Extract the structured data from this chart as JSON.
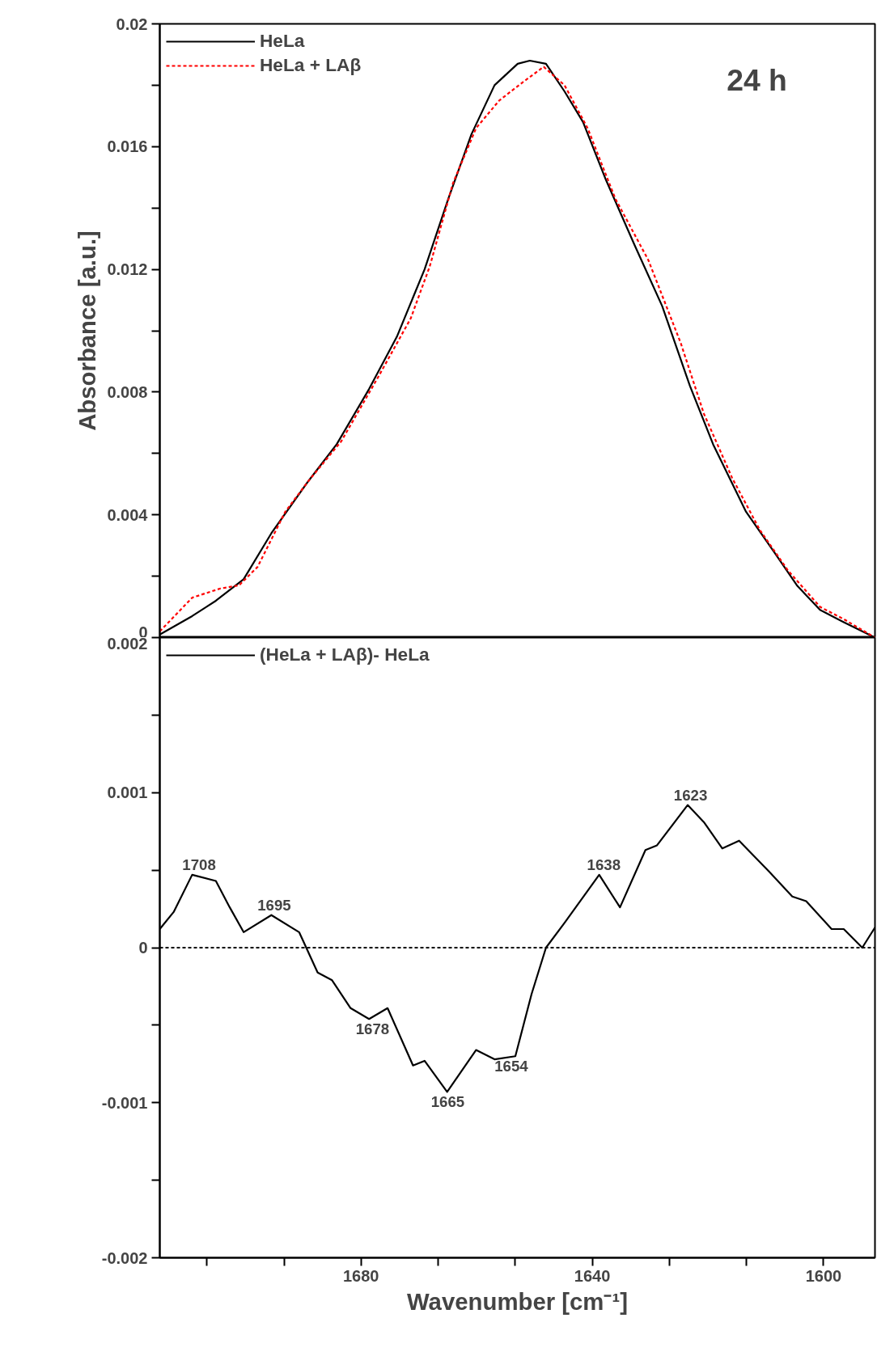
{
  "chart_data": [
    {
      "type": "line",
      "ylabel": "Absorbance [a.u.]",
      "xlim": [
        1714.8,
        1591.1
      ],
      "ylim": [
        0,
        0.02
      ],
      "yticks": [
        0,
        {
          "value": 0.002,
          "label": null
        },
        0.004,
        {
          "value": 0.006,
          "label": null
        },
        0.008,
        {
          "value": 0.01,
          "label": null
        },
        0.012,
        {
          "value": 0.014,
          "label": null
        },
        0.016,
        {
          "value": 0.018,
          "label": null
        },
        0.02
      ],
      "tick_labels": "y",
      "legend": "top left",
      "grid": false,
      "annotations": [
        "24 h"
      ],
      "series": [
        {
          "name": "HeLa",
          "color": "#000000",
          "line_style": "solid",
          "x": [
            1714.8,
            1709.2,
            1705.1,
            1700.3,
            1695.5,
            1689.1,
            1684.2,
            1678.6,
            1673.8,
            1669.0,
            1664.9,
            1660.9,
            1656.9,
            1652.9,
            1650.8,
            1648.0,
            1644.8,
            1641.6,
            1637.6,
            1632.7,
            1627.9,
            1623.1,
            1619.1,
            1613.4,
            1608.6,
            1604.6,
            1600.6,
            1596.5,
            1591.1
          ],
          "values": [
            0.0001,
            0.0007,
            0.0012,
            0.0019,
            0.0034,
            0.0051,
            0.0063,
            0.0081,
            0.0098,
            0.012,
            0.0143,
            0.0164,
            0.018,
            0.0187,
            0.0188,
            0.0187,
            0.0178,
            0.0168,
            0.0149,
            0.0128,
            0.0108,
            0.0082,
            0.0063,
            0.0041,
            0.0028,
            0.0017,
            0.0009,
            0.0005,
            0.0
          ]
        },
        {
          "name": "HeLa + LAβ",
          "color": "#ff0000",
          "line_style": "dashed",
          "x": [
            1714.8,
            1709.2,
            1704.3,
            1701.1,
            1697.9,
            1693.1,
            1689.1,
            1683.4,
            1677.0,
            1671.4,
            1668.1,
            1664.1,
            1660.1,
            1656.1,
            1652.0,
            1648.4,
            1644.8,
            1640.8,
            1636.0,
            1630.3,
            1624.7,
            1620.7,
            1615.8,
            1611.0,
            1606.2,
            1600.6,
            1596.5,
            1591.1
          ],
          "values": [
            0.0002,
            0.0013,
            0.0016,
            0.0017,
            0.0023,
            0.0041,
            0.0051,
            0.0064,
            0.0085,
            0.0104,
            0.0121,
            0.0148,
            0.0166,
            0.0175,
            0.0181,
            0.0186,
            0.018,
            0.0166,
            0.0143,
            0.0123,
            0.0096,
            0.0073,
            0.0052,
            0.0035,
            0.0022,
            0.001,
            0.0006,
            0.0
          ]
        }
      ]
    },
    {
      "type": "line",
      "xlabel": "Wavenumber [cm⁻¹]",
      "xlim": [
        1714.8,
        1591.1
      ],
      "ylim": [
        -0.002,
        0.002
      ],
      "xticks": [
        {
          "value": 1706.7,
          "label": null
        },
        {
          "value": 1693.3,
          "label": null
        },
        1680,
        {
          "value": 1666.7,
          "label": null
        },
        {
          "value": 1653.3,
          "label": null
        },
        1640,
        {
          "value": 1626.7,
          "label": null
        },
        {
          "value": 1613.3,
          "label": null
        },
        1600
      ],
      "yticks": [
        -0.002,
        {
          "value": -0.0015,
          "label": null
        },
        -0.001,
        {
          "value": -0.0005,
          "label": null
        },
        0,
        {
          "value": 0.0005,
          "label": null
        },
        0.001,
        {
          "value": 0.0015,
          "label": null
        },
        0.002
      ],
      "legend": "top left",
      "grid": false,
      "ref_lines": [
        {
          "axis": "y",
          "value": 0,
          "color": "#000000",
          "line_style": "dashed"
        }
      ],
      "annotations": [
        {
          "text": "1708",
          "x": 1708,
          "y": 0.00047
        },
        {
          "text": "1695",
          "x": 1695,
          "y": 0.00021
        },
        {
          "text": "1678",
          "x": 1678,
          "y": -0.00046
        },
        {
          "text": "1665",
          "x": 1665,
          "y": -0.00093
        },
        {
          "text": "1654",
          "x": 1654,
          "y": -0.0007
        },
        {
          "text": "1638",
          "x": 1638,
          "y": 0.00047
        },
        {
          "text": "1623",
          "x": 1623,
          "y": 0.00092
        }
      ],
      "series": [
        {
          "name": "(HeLa + LAβ)- HeLa",
          "color": "#000000",
          "line_style": "solid",
          "x": [
            1714.8,
            1712.4,
            1709.2,
            1705.1,
            1702.7,
            1700.3,
            1695.5,
            1690.7,
            1687.5,
            1685.0,
            1681.8,
            1678.6,
            1675.4,
            1671.0,
            1669.0,
            1665.1,
            1660.1,
            1656.9,
            1653.3,
            1650.5,
            1648.0,
            1644.8,
            1638.8,
            1635.2,
            1630.8,
            1628.8,
            1623.5,
            1620.7,
            1617.5,
            1614.6,
            1609.4,
            1605.4,
            1603.0,
            1598.6,
            1596.5,
            1593.3,
            1591.1
          ],
          "values": [
            0.00012,
            0.00023,
            0.00047,
            0.00043,
            0.00026,
            0.0001,
            0.00021,
            0.0001,
            -0.00016,
            -0.00021,
            -0.00039,
            -0.00046,
            -0.00039,
            -0.00076,
            -0.00073,
            -0.00093,
            -0.00066,
            -0.00072,
            -0.0007,
            -0.0003,
            0.0,
            0.00016,
            0.00047,
            0.00026,
            0.00063,
            0.00066,
            0.00092,
            0.00081,
            0.00064,
            0.00069,
            0.00049,
            0.00033,
            0.0003,
            0.00012,
            0.00012,
            0.0,
            0.00013
          ]
        }
      ]
    }
  ]
}
